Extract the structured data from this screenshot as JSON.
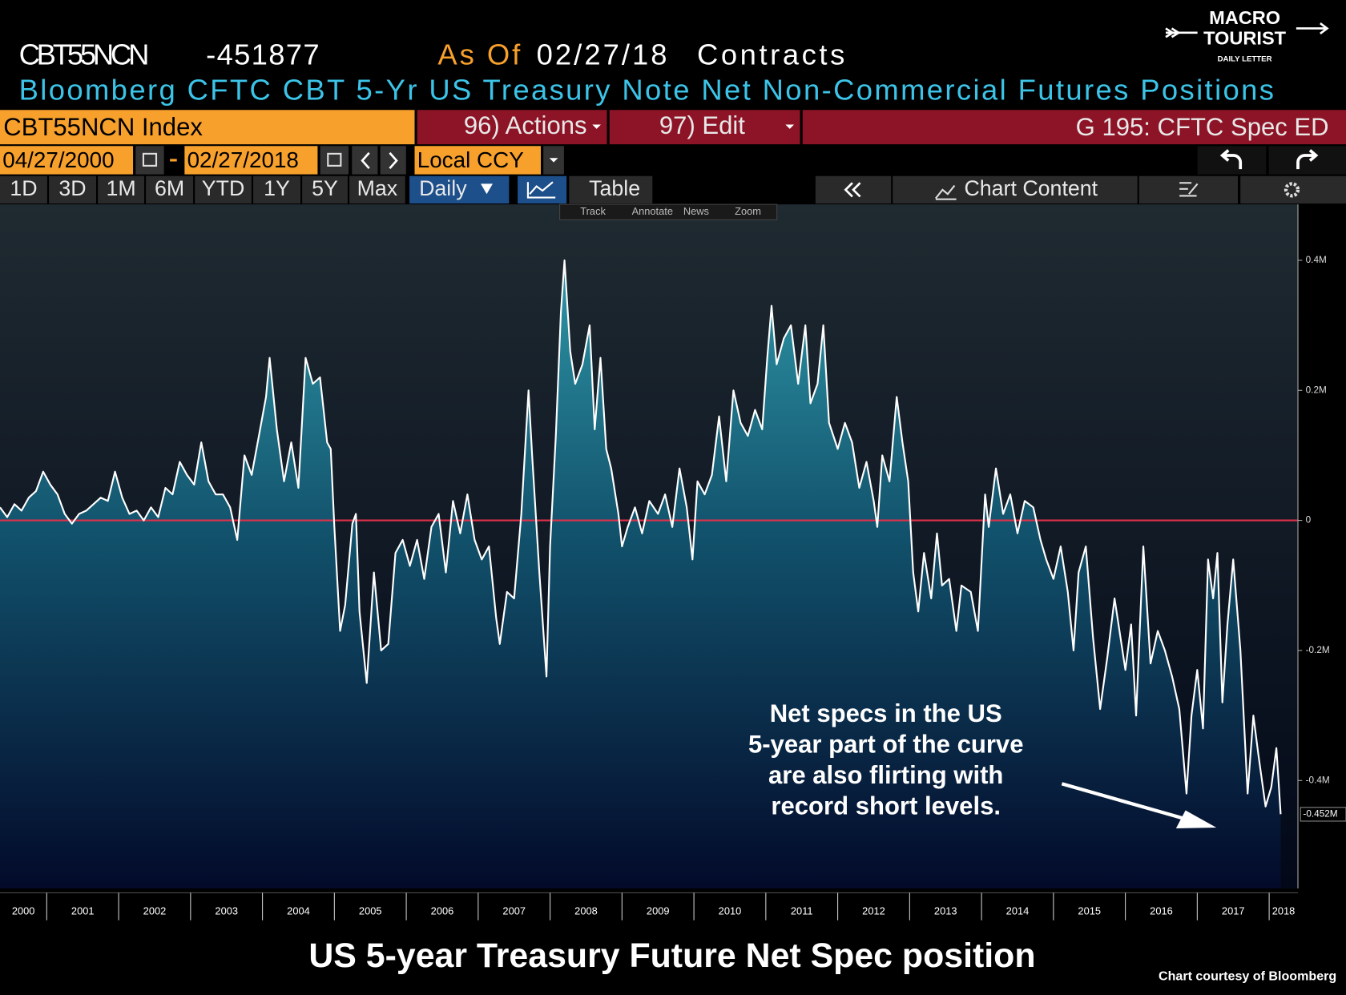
{
  "header": {
    "ticker": "CBT55NCN",
    "last": "-451877",
    "as_of_label": "As Of",
    "as_of_date": "02/27/18",
    "units": "Contracts",
    "description": "Bloomberg CFTC CBT 5-Yr US Treasury Note Net Non-Commercial Futures Positions"
  },
  "logo": {
    "line1": "MACRO",
    "line2": "TOURIST",
    "tagline": "DAILY LETTER"
  },
  "toolbar": {
    "security": "CBT55NCN Index",
    "actions": "96) Actions",
    "edit": "97) Edit",
    "function": "G 195: CFTC Spec ED",
    "start_date": "04/27/2000",
    "end_date": "02/27/2018",
    "currency": "Local CCY",
    "periods": [
      "1D",
      "3D",
      "1M",
      "6M",
      "YTD",
      "1Y",
      "5Y",
      "Max"
    ],
    "frequency": "Daily",
    "table": "Table",
    "chart_content": "Chart Content",
    "tools": [
      "Track",
      "Annotate",
      "News",
      "Zoom"
    ]
  },
  "chart_data": {
    "type": "area",
    "color": "#ffffff",
    "zero_line_color": "#e0304a",
    "x": [
      2000.35,
      2000.45,
      2000.55,
      2000.65,
      2000.75,
      2000.85,
      2000.95,
      2001.05,
      2001.15,
      2001.25,
      2001.35,
      2001.45,
      2001.55,
      2001.65,
      2001.75,
      2001.85,
      2001.95,
      2002.05,
      2002.15,
      2002.25,
      2002.35,
      2002.45,
      2002.55,
      2002.65,
      2002.75,
      2002.85,
      2002.95,
      2003.05,
      2003.15,
      2003.25,
      2003.35,
      2003.45,
      2003.55,
      2003.65,
      2003.75,
      2003.85,
      2003.95,
      2004.05,
      2004.1,
      2004.2,
      2004.3,
      2004.4,
      2004.5,
      2004.6,
      2004.7,
      2004.8,
      2004.9,
      2004.95,
      2005.0,
      2005.08,
      2005.15,
      2005.25,
      2005.3,
      2005.35,
      2005.45,
      2005.55,
      2005.65,
      2005.75,
      2005.85,
      2005.95,
      2006.05,
      2006.15,
      2006.25,
      2006.35,
      2006.45,
      2006.55,
      2006.65,
      2006.75,
      2006.85,
      2006.95,
      2007.05,
      2007.15,
      2007.25,
      2007.3,
      2007.4,
      2007.5,
      2007.6,
      2007.7,
      2007.75,
      2007.85,
      2007.95,
      2008.0,
      2008.08,
      2008.15,
      2008.2,
      2008.28,
      2008.35,
      2008.45,
      2008.55,
      2008.62,
      2008.7,
      2008.78,
      2008.85,
      2008.95,
      2009.0,
      2009.08,
      2009.18,
      2009.28,
      2009.38,
      2009.5,
      2009.6,
      2009.7,
      2009.8,
      2009.9,
      2009.98,
      2010.05,
      2010.15,
      2010.25,
      2010.35,
      2010.45,
      2010.55,
      2010.65,
      2010.75,
      2010.85,
      2010.95,
      2011.02,
      2011.08,
      2011.15,
      2011.25,
      2011.35,
      2011.45,
      2011.55,
      2011.62,
      2011.72,
      2011.8,
      2011.88,
      2012.0,
      2012.1,
      2012.2,
      2012.3,
      2012.4,
      2012.5,
      2012.55,
      2012.62,
      2012.72,
      2012.82,
      2012.9,
      2012.98,
      2013.05,
      2013.12,
      2013.2,
      2013.3,
      2013.38,
      2013.45,
      2013.55,
      2013.65,
      2013.72,
      2013.85,
      2013.95,
      2014.05,
      2014.1,
      2014.2,
      2014.3,
      2014.4,
      2014.5,
      2014.6,
      2014.72,
      2014.82,
      2014.9,
      2015.0,
      2015.1,
      2015.2,
      2015.28,
      2015.35,
      2015.45,
      2015.55,
      2015.65,
      2015.75,
      2015.85,
      2016.0,
      2016.08,
      2016.15,
      2016.25,
      2016.35,
      2016.45,
      2016.55,
      2016.65,
      2016.75,
      2016.85,
      2016.92,
      2017.0,
      2017.08,
      2017.15,
      2017.22,
      2017.28,
      2017.35,
      2017.42,
      2017.5,
      2017.6,
      2017.7,
      2017.78,
      2017.85,
      2017.95,
      2018.03,
      2018.1,
      2018.16
    ],
    "values": [
      20000,
      5000,
      25000,
      15000,
      35000,
      45000,
      75000,
      55000,
      40000,
      10000,
      -5000,
      10000,
      15000,
      25000,
      35000,
      30000,
      75000,
      35000,
      10000,
      15000,
      0,
      20000,
      5000,
      50000,
      40000,
      90000,
      70000,
      55000,
      120000,
      60000,
      40000,
      40000,
      20000,
      -30000,
      100000,
      70000,
      130000,
      190000,
      250000,
      140000,
      60000,
      120000,
      50000,
      250000,
      210000,
      220000,
      120000,
      110000,
      -10000,
      -170000,
      -130000,
      -5000,
      10000,
      -140000,
      -250000,
      -80000,
      -200000,
      -190000,
      -50000,
      -30000,
      -70000,
      -30000,
      -90000,
      -10000,
      10000,
      -80000,
      30000,
      -20000,
      40000,
      -30000,
      -60000,
      -40000,
      -150000,
      -190000,
      -110000,
      -120000,
      10000,
      200000,
      100000,
      -80000,
      -240000,
      -40000,
      130000,
      320000,
      400000,
      260000,
      210000,
      240000,
      300000,
      140000,
      250000,
      110000,
      80000,
      10000,
      -40000,
      -10000,
      20000,
      -20000,
      30000,
      10000,
      40000,
      -10000,
      80000,
      20000,
      -60000,
      60000,
      40000,
      70000,
      160000,
      60000,
      200000,
      150000,
      130000,
      170000,
      140000,
      250000,
      330000,
      240000,
      280000,
      300000,
      210000,
      300000,
      180000,
      210000,
      300000,
      150000,
      110000,
      150000,
      120000,
      50000,
      90000,
      30000,
      -10000,
      100000,
      60000,
      190000,
      120000,
      60000,
      -80000,
      -140000,
      -50000,
      -120000,
      -20000,
      -100000,
      -90000,
      -170000,
      -100000,
      -110000,
      -170000,
      40000,
      -10000,
      80000,
      10000,
      40000,
      -20000,
      30000,
      20000,
      -30000,
      -60000,
      -90000,
      -40000,
      -110000,
      -200000,
      -80000,
      -40000,
      -180000,
      -290000,
      -210000,
      -120000,
      -230000,
      -160000,
      -300000,
      -40000,
      -220000,
      -170000,
      -200000,
      -240000,
      -290000,
      -420000,
      -300000,
      -230000,
      -320000,
      -60000,
      -120000,
      -50000,
      -280000,
      -160000,
      -60000,
      -200000,
      -420000,
      -300000,
      -360000,
      -440000,
      -410000,
      -350000,
      -451877
    ],
    "last_value": {
      "value": -451877,
      "label": "-0.452M"
    },
    "xlim": [
      2000.35,
      2018.4
    ],
    "xticks": [
      2000,
      2001,
      2002,
      2003,
      2004,
      2005,
      2006,
      2007,
      2008,
      2009,
      2010,
      2011,
      2012,
      2013,
      2014,
      2015,
      2016,
      2017,
      2018
    ],
    "ylim": [
      -566000,
      486000
    ],
    "yticks": [
      {
        "value": 400000,
        "label": "0.4M"
      },
      {
        "value": 200000,
        "label": "0.2M"
      },
      0,
      {
        "value": -200000,
        "label": "-0.2M"
      },
      {
        "value": -400000,
        "label": "-0.4M"
      }
    ],
    "annotation": [
      "Net specs in the US",
      "5-year part of the curve",
      "are also flirting with",
      "record short levels."
    ]
  },
  "footer": {
    "title": "US 5-year Treasury Future Net Spec position",
    "credit": "Chart courtesy of Bloomberg"
  }
}
